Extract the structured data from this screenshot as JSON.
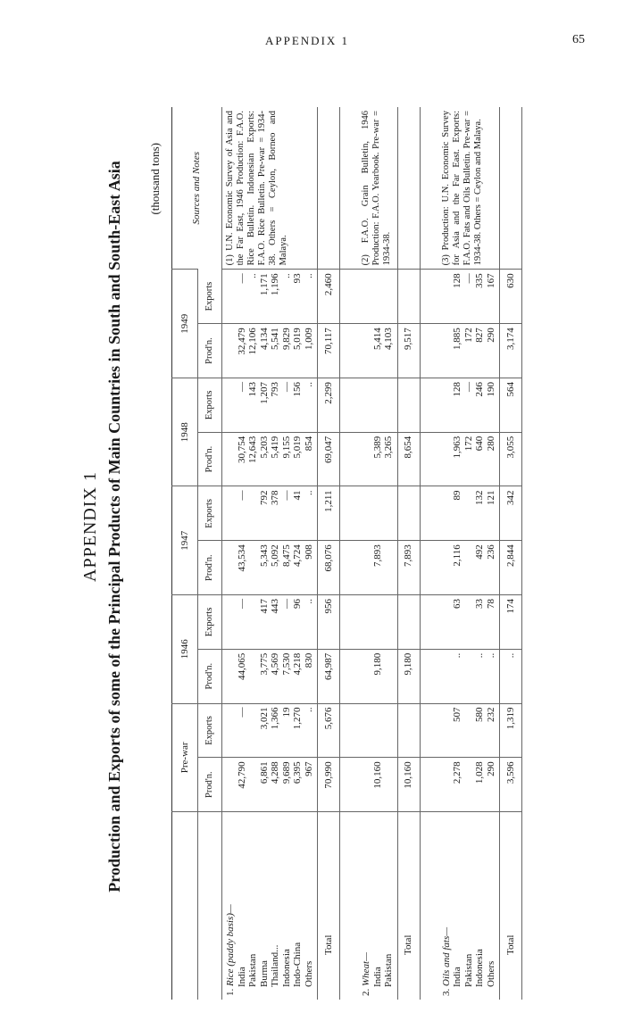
{
  "header": {
    "appendix_label": "APPENDIX 1",
    "page_number": "65"
  },
  "titles": {
    "appendix": "APPENDIX 1",
    "main": "Production and Exports of some of the Principal Products of Main Countries in South and South-East Asia",
    "unit": "(thousand tons)"
  },
  "columns": {
    "years": [
      "Pre-war",
      "1946",
      "1947",
      "1948",
      "1949"
    ],
    "prod": "Prod'n.",
    "exp": "Exports",
    "sources": "Sources and Notes"
  },
  "sections": [
    {
      "number": "1.",
      "title": "Rice (paddy basis)—",
      "countries": [
        "India",
        "Pakistan",
        "Burma",
        "Thailand...",
        "Indonesia",
        "Indo-China",
        "Others"
      ],
      "prewar_prod": [
        "42,790",
        "",
        "6,861",
        "4,288",
        "9,689",
        "6,395",
        "967"
      ],
      "prewar_exp": [
        "—",
        "",
        "3,021",
        "1,366",
        "19",
        "1,270",
        ".."
      ],
      "y1946_prod": [
        "44,065",
        "",
        "3,775",
        "4,569",
        "7,530",
        "4,218",
        "830"
      ],
      "y1946_exp": [
        "—",
        "",
        "417",
        "443",
        "—",
        "96",
        ".."
      ],
      "y1947_prod": [
        "43,534",
        "",
        "5,343",
        "5,092",
        "8,475",
        "4,724",
        "908"
      ],
      "y1947_exp": [
        "—",
        "",
        "792",
        "378",
        "—",
        "41",
        ".."
      ],
      "y1948_prod": [
        "30,754",
        "12,643",
        "5,203",
        "5,419",
        "9,155",
        "5,019",
        "854"
      ],
      "y1948_exp": [
        "—",
        "143",
        "1,207",
        "793",
        "—",
        "156",
        ".."
      ],
      "y1949_prod": [
        "32,479",
        "12,106",
        "4,134",
        "5,541",
        "9,829",
        "5,019",
        "1,009"
      ],
      "y1949_exp": [
        "—",
        "..",
        "1,171",
        "1,196",
        "..",
        "93",
        ".."
      ],
      "total_label": "Total",
      "totals": [
        "70,990",
        "5,676",
        "64,987",
        "956",
        "68,076",
        "1,211",
        "69,047",
        "2,299",
        "70,117",
        "2,460"
      ],
      "note": "(1) U.N. Economic Survey of Asia and the Far East, 1946 Production: F.A.O. Rice Bulletin. Indonesian Exports: F.A.O. Rice Bulletin. Pre-war = 1934-38. Others = Ceylon, Borneo and Malaya."
    },
    {
      "number": "2.",
      "title": "Wheat—",
      "countries": [
        "India",
        "Pakistan"
      ],
      "prewar_prod": [
        "10,160",
        ""
      ],
      "prewar_exp": [
        "",
        ""
      ],
      "y1946_prod": [
        "9,180",
        ""
      ],
      "y1946_exp": [
        "",
        ""
      ],
      "y1947_prod": [
        "7,893",
        ""
      ],
      "y1947_exp": [
        "",
        ""
      ],
      "y1948_prod": [
        "5,389",
        "3,265"
      ],
      "y1948_exp": [
        "",
        ""
      ],
      "y1949_prod": [
        "5,414",
        "4,103"
      ],
      "y1949_exp": [
        "",
        ""
      ],
      "total_label": "Total",
      "totals": [
        "10,160",
        "",
        "9,180",
        "",
        "7,893",
        "",
        "8,654",
        "",
        "9,517",
        ""
      ],
      "note": "(2) F.A.O. Grain Bulletin, 1946 Production: F.A.O. Yearbook. Pre-war = 1934-38."
    },
    {
      "number": "3.",
      "title": "Oils and fats—",
      "countries": [
        "India",
        "Pakistan",
        "Indonesia",
        "Others"
      ],
      "prewar_prod": [
        "2,278",
        "",
        "1,028",
        "290"
      ],
      "prewar_exp": [
        "507",
        "",
        "580",
        "232"
      ],
      "y1946_prod": [
        "..",
        "",
        "..",
        ".."
      ],
      "y1946_exp": [
        "63",
        "",
        "33",
        "78"
      ],
      "y1947_prod": [
        "2,116",
        "",
        "492",
        "236"
      ],
      "y1947_exp": [
        "89",
        "",
        "132",
        "121"
      ],
      "y1948_prod": [
        "1,963",
        "172",
        "640",
        "280"
      ],
      "y1948_exp": [
        "128",
        "—",
        "246",
        "190"
      ],
      "y1949_prod": [
        "1,885",
        "172",
        "827",
        "290"
      ],
      "y1949_exp": [
        "128",
        "—",
        "335",
        "167"
      ],
      "total_label": "Total",
      "totals": [
        "3,596",
        "1,319",
        "..",
        "174",
        "2,844",
        "342",
        "3,055",
        "564",
        "3,174",
        "630"
      ],
      "note": "(3) Production: U.N. Economic Survey for Asia and the Far East. Exports: F.A.O. Fats and Oils Bulletin. Pre-war = 1934-38. Others = Ceylon and Malaya."
    }
  ]
}
